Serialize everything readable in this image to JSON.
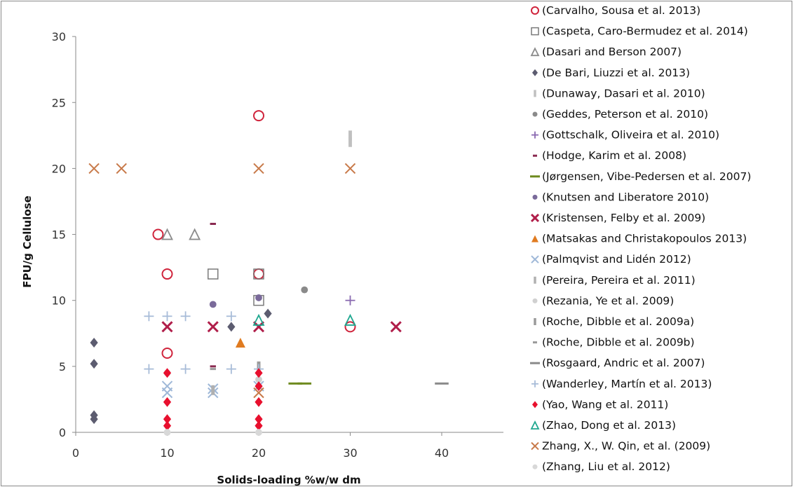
{
  "chart_data": {
    "type": "scatter",
    "title": "",
    "xlabel": "Solids-loading %w/w dm",
    "ylabel": "FPU/g Cellulose",
    "xlim": [
      0,
      45
    ],
    "ylim": [
      0,
      30
    ],
    "xticks": [
      "0",
      "10",
      "20",
      "30",
      "40"
    ],
    "yticks": [
      "0",
      "5",
      "10",
      "15",
      "20",
      "25",
      "30"
    ],
    "grid": false,
    "legend_position": "right",
    "series": [
      {
        "name": "(Carvalho, Sousa et al. 2013)",
        "marker": "circle",
        "color": "#d0243c",
        "points": [
          [
            9,
            15
          ],
          [
            10,
            12
          ],
          [
            10,
            6
          ],
          [
            20,
            24
          ],
          [
            20,
            12
          ],
          [
            30,
            8
          ]
        ]
      },
      {
        "name": "(Caspeta, Caro-Bermudez et al. 2014)",
        "marker": "square",
        "color": "#7a7a7a",
        "points": [
          [
            15,
            12
          ],
          [
            20,
            12
          ],
          [
            20,
            10
          ]
        ]
      },
      {
        "name": "(Dasari and Berson 2007)",
        "marker": "triangle",
        "color": "#8c8c8c",
        "points": [
          [
            10,
            15
          ],
          [
            13,
            15
          ]
        ]
      },
      {
        "name": "(De Bari, Liuzzi et al. 2013)",
        "marker": "diamond",
        "color": "#5c5c70",
        "points": [
          [
            2,
            6.8
          ],
          [
            2,
            5.2
          ],
          [
            2,
            1.3
          ],
          [
            2,
            1.0
          ],
          [
            17,
            8
          ],
          [
            21,
            9
          ]
        ]
      },
      {
        "name": "(Dunaway, Dasari et al. 2010)",
        "marker": "bar",
        "color": "#c0c0c0",
        "points": [
          [
            30,
            22
          ],
          [
            30,
            22.5
          ]
        ]
      },
      {
        "name": "(Geddes, Peterson et al. 2010)",
        "marker": "dot",
        "color": "#8a8a8a",
        "points": [
          [
            25,
            10.8
          ]
        ]
      },
      {
        "name": "(Gottschalk, Oliveira et al. 2010)",
        "marker": "plus",
        "color": "#8a6ab0",
        "points": [
          [
            30,
            10
          ]
        ]
      },
      {
        "name": "(Hodge, Karim et al. 2008)",
        "marker": "dash",
        "color": "#8a2a50",
        "points": [
          [
            15,
            15.8
          ],
          [
            15,
            5
          ]
        ]
      },
      {
        "name": "(Jørgensen, Vibe-Pedersen et al. 2007)",
        "marker": "line",
        "color": "#6e8a1e",
        "points": [
          [
            24,
            3.7
          ],
          [
            25,
            3.7
          ]
        ]
      },
      {
        "name": "(Knutsen and Liberatore 2010)",
        "marker": "dot",
        "color": "#7a6a9a",
        "points": [
          [
            15,
            9.7
          ],
          [
            20,
            10.2
          ]
        ]
      },
      {
        "name": "(Kristensen, Felby et al. 2009)",
        "marker": "starx",
        "color": "#b01e4a",
        "points": [
          [
            10,
            8
          ],
          [
            15,
            8
          ],
          [
            20,
            8
          ],
          [
            35,
            8
          ]
        ]
      },
      {
        "name": "(Matsakas and Christakopoulos 2013)",
        "marker": "triangle-filled",
        "color": "#e07b20",
        "points": [
          [
            18,
            6.8
          ]
        ]
      },
      {
        "name": "(Palmqvist and Lidén 2012)",
        "marker": "x",
        "color": "#9fb8d8",
        "points": [
          [
            10,
            3.5
          ],
          [
            10,
            3
          ],
          [
            15,
            3
          ],
          [
            15,
            3.3
          ],
          [
            20,
            3.5
          ]
        ]
      },
      {
        "name": "(Pereira, Pereira et al. 2011)",
        "marker": "bar",
        "color": "#b0b0b0",
        "points": [
          [
            15,
            3.2
          ]
        ]
      },
      {
        "name": "(Rezania, Ye et al. 2009)",
        "marker": "dot",
        "color": "#d0d0d0",
        "points": [
          [
            10,
            4.5
          ],
          [
            20,
            4
          ]
        ]
      },
      {
        "name": "(Roche, Dibble et al. 2009a)",
        "marker": "bar",
        "color": "#9a9a9a",
        "points": [
          [
            20,
            5
          ]
        ]
      },
      {
        "name": "(Roche, Dibble et al. 2009b)",
        "marker": "dash",
        "color": "#9a9a9a",
        "points": [
          [
            15,
            4.8
          ]
        ]
      },
      {
        "name": "(Rosgaard, Andric et al. 2007)",
        "marker": "line",
        "color": "#8a8a8a",
        "points": [
          [
            40,
            3.7
          ]
        ]
      },
      {
        "name": "(Wanderley, Martín et al. 2013)",
        "marker": "plus",
        "color": "#a8bcd8",
        "points": [
          [
            8,
            8.8
          ],
          [
            10,
            8.8
          ],
          [
            12,
            8.8
          ],
          [
            17,
            8.8
          ],
          [
            8,
            4.8
          ],
          [
            12,
            4.8
          ],
          [
            17,
            4.8
          ],
          [
            20,
            4.8
          ]
        ]
      },
      {
        "name": "(Yao, Wang et al. 2011)",
        "marker": "diamond",
        "color": "#e8102e",
        "points": [
          [
            10,
            4.5
          ],
          [
            10,
            2.3
          ],
          [
            10,
            1.0
          ],
          [
            10,
            0.5
          ],
          [
            20,
            4.5
          ],
          [
            20,
            3.5
          ],
          [
            20,
            2.3
          ],
          [
            20,
            1.0
          ],
          [
            20,
            0.5
          ]
        ]
      },
      {
        "name": "(Zhao, Dong et al. 2013)",
        "marker": "triangle",
        "color": "#20a890",
        "points": [
          [
            20,
            8.5
          ],
          [
            30,
            8.5
          ]
        ]
      },
      {
        "name": "Zhang, X., W. Qin, et al. (2009)",
        "marker": "x",
        "color": "#c87a4a",
        "points": [
          [
            2,
            20
          ],
          [
            5,
            20
          ],
          [
            20,
            20
          ],
          [
            30,
            20
          ],
          [
            20,
            3
          ]
        ]
      },
      {
        "name": "(Zhang, Liu et al. 2012)",
        "marker": "dot",
        "color": "#d8d8d8",
        "points": [
          [
            10,
            0
          ],
          [
            20,
            0
          ]
        ]
      }
    ]
  }
}
